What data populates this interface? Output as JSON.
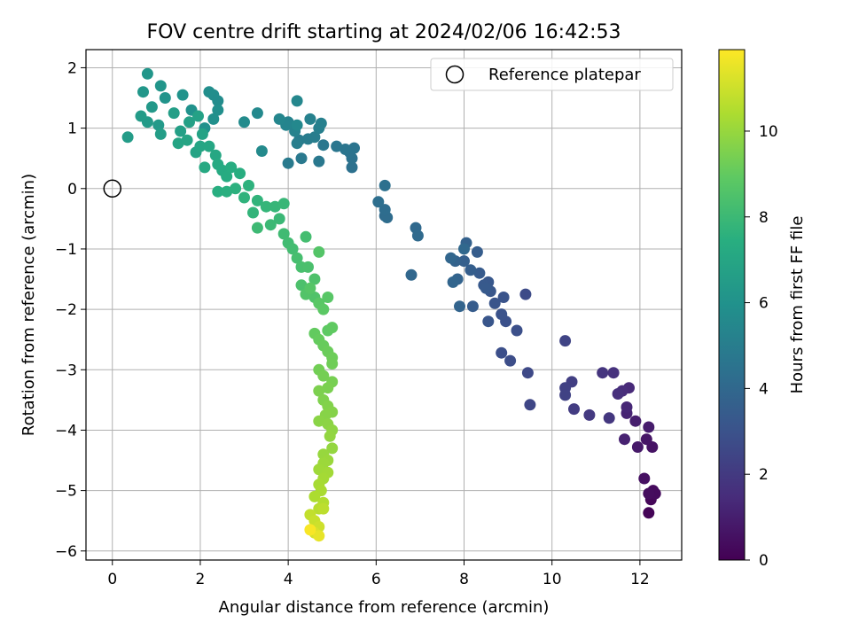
{
  "chart_data": {
    "type": "scatter",
    "title": "FOV centre drift starting at 2024/02/06 16:42:53",
    "xlabel": "Angular distance from reference (arcmin)",
    "ylabel": "Rotation from reference (arcmin)",
    "xlim": [
      -0.6,
      12.95
    ],
    "ylim": [
      -6.15,
      2.3
    ],
    "xticks": [
      0,
      2,
      4,
      6,
      8,
      10,
      12
    ],
    "yticks": [
      -6,
      -5,
      -4,
      -3,
      -2,
      -1,
      0,
      1,
      2
    ],
    "grid": true,
    "legend": {
      "placement": "top-right",
      "entries": [
        "Reference platepar"
      ]
    },
    "reference_point": {
      "x": 0,
      "y": 0,
      "marker": "hollow-circle",
      "name": "Reference platepar"
    },
    "colormap": "viridis",
    "colorbar": {
      "label": "Hours from first FF file",
      "min": 0,
      "max": 11.9,
      "ticks": [
        0,
        2,
        4,
        6,
        8,
        10
      ]
    },
    "series": [
      {
        "points": [
          [
            12.2,
            -5.37,
            0.1
          ],
          [
            12.25,
            -5.15,
            0.2
          ],
          [
            12.3,
            -5.0,
            0.3
          ],
          [
            12.35,
            -5.05,
            0.35
          ],
          [
            12.2,
            -5.05,
            0.4
          ],
          [
            12.1,
            -4.8,
            0.5
          ],
          [
            12.28,
            -4.28,
            0.6
          ],
          [
            12.15,
            -4.15,
            0.7
          ],
          [
            11.95,
            -4.28,
            0.8
          ],
          [
            12.2,
            -3.95,
            0.9
          ],
          [
            11.9,
            -3.85,
            1.0
          ],
          [
            11.65,
            -4.15,
            1.1
          ],
          [
            11.7,
            -3.72,
            1.2
          ],
          [
            11.7,
            -3.62,
            1.3
          ],
          [
            11.75,
            -3.3,
            1.4
          ],
          [
            11.6,
            -3.35,
            1.5
          ],
          [
            11.5,
            -3.4,
            1.6
          ],
          [
            11.4,
            -3.05,
            1.7
          ],
          [
            11.15,
            -3.05,
            1.8
          ],
          [
            11.3,
            -3.8,
            1.9
          ],
          [
            10.85,
            -3.75,
            2.0
          ],
          [
            10.5,
            -3.65,
            2.1
          ],
          [
            10.45,
            -3.2,
            2.2
          ],
          [
            10.3,
            -3.3,
            2.3
          ],
          [
            10.3,
            -3.42,
            2.35
          ],
          [
            10.3,
            -2.52,
            2.4
          ],
          [
            9.5,
            -3.58,
            2.5
          ],
          [
            9.45,
            -3.05,
            2.6
          ],
          [
            9.4,
            -1.75,
            2.7
          ],
          [
            9.05,
            -2.85,
            2.8
          ],
          [
            8.85,
            -2.72,
            2.85
          ],
          [
            9.2,
            -2.35,
            2.9
          ],
          [
            8.95,
            -2.2,
            2.95
          ],
          [
            8.85,
            -2.08,
            3.0
          ],
          [
            8.9,
            -1.8,
            3.05
          ],
          [
            8.7,
            -1.9,
            3.1
          ],
          [
            8.55,
            -2.2,
            3.15
          ],
          [
            8.6,
            -1.7,
            3.2
          ],
          [
            8.55,
            -1.55,
            3.25
          ],
          [
            8.45,
            -1.6,
            3.3
          ],
          [
            8.5,
            -1.65,
            3.35
          ],
          [
            8.35,
            -1.4,
            3.4
          ],
          [
            8.2,
            -1.95,
            3.45
          ],
          [
            8.3,
            -1.05,
            3.5
          ],
          [
            8.15,
            -1.35,
            3.55
          ],
          [
            8.0,
            -1.2,
            3.6
          ],
          [
            8.05,
            -0.9,
            3.65
          ],
          [
            7.8,
            -1.2,
            3.7
          ],
          [
            7.85,
            -1.5,
            3.75
          ],
          [
            7.9,
            -1.95,
            3.8
          ],
          [
            7.75,
            -1.55,
            3.85
          ],
          [
            7.7,
            -1.15,
            3.9
          ],
          [
            6.8,
            -1.43,
            3.95
          ],
          [
            8.0,
            -1.0,
            4.0
          ],
          [
            6.9,
            -0.65,
            4.05
          ],
          [
            6.95,
            -0.78,
            4.1
          ],
          [
            6.2,
            -0.45,
            4.15
          ],
          [
            6.25,
            -0.48,
            4.2
          ],
          [
            6.2,
            -0.35,
            4.25
          ],
          [
            6.05,
            -0.22,
            4.3
          ],
          [
            6.2,
            0.05,
            4.35
          ],
          [
            5.45,
            0.35,
            4.4
          ],
          [
            5.45,
            0.5,
            4.45
          ],
          [
            5.4,
            0.6,
            4.5
          ],
          [
            5.5,
            0.67,
            4.55
          ],
          [
            5.3,
            0.65,
            4.6
          ],
          [
            5.1,
            0.7,
            4.65
          ],
          [
            4.8,
            0.72,
            4.7
          ],
          [
            4.7,
            0.45,
            4.75
          ],
          [
            4.3,
            0.5,
            4.8
          ],
          [
            4.0,
            0.42,
            4.85
          ],
          [
            4.25,
            0.8,
            4.9
          ],
          [
            4.45,
            0.82,
            4.95
          ],
          [
            4.6,
            0.85,
            5.0
          ],
          [
            4.2,
            0.75,
            5.05
          ],
          [
            4.7,
            1.0,
            5.1
          ],
          [
            4.75,
            1.08,
            5.15
          ],
          [
            4.5,
            1.15,
            5.2
          ],
          [
            4.15,
            0.95,
            5.25
          ],
          [
            4.0,
            1.1,
            5.3
          ],
          [
            3.95,
            1.05,
            5.35
          ],
          [
            3.8,
            1.15,
            5.4
          ],
          [
            4.2,
            1.45,
            5.45
          ],
          [
            4.2,
            1.05,
            5.5
          ],
          [
            3.3,
            1.25,
            5.55
          ],
          [
            3.4,
            0.62,
            5.6
          ],
          [
            3.0,
            1.1,
            5.65
          ],
          [
            2.4,
            1.45,
            5.7
          ],
          [
            2.3,
            1.55,
            5.75
          ],
          [
            2.2,
            1.6,
            5.8
          ],
          [
            2.4,
            1.3,
            5.85
          ],
          [
            2.3,
            1.15,
            5.9
          ],
          [
            2.1,
            1.0,
            5.95
          ],
          [
            1.8,
            1.3,
            6.0
          ],
          [
            1.6,
            1.55,
            6.05
          ],
          [
            1.2,
            1.5,
            6.1
          ],
          [
            1.1,
            1.7,
            6.15
          ],
          [
            0.8,
            1.9,
            6.2
          ],
          [
            0.7,
            1.6,
            6.25
          ],
          [
            0.9,
            1.35,
            6.3
          ],
          [
            1.05,
            1.05,
            6.35
          ],
          [
            0.8,
            1.1,
            6.4
          ],
          [
            0.65,
            1.2,
            6.45
          ],
          [
            0.35,
            0.85,
            6.5
          ],
          [
            1.1,
            0.9,
            6.55
          ],
          [
            1.4,
            1.25,
            6.6
          ],
          [
            1.55,
            0.95,
            6.65
          ],
          [
            1.75,
            1.1,
            6.7
          ],
          [
            1.95,
            1.2,
            6.75
          ],
          [
            2.05,
            0.9,
            6.8
          ],
          [
            1.9,
            0.6,
            6.85
          ],
          [
            1.5,
            0.75,
            6.9
          ],
          [
            1.7,
            0.8,
            6.95
          ],
          [
            2.0,
            0.7,
            7.0
          ],
          [
            2.2,
            0.7,
            7.05
          ],
          [
            2.35,
            0.55,
            7.1
          ],
          [
            2.1,
            0.35,
            7.15
          ],
          [
            2.4,
            0.4,
            7.2
          ],
          [
            2.5,
            0.3,
            7.25
          ],
          [
            2.6,
            0.2,
            7.3
          ],
          [
            2.7,
            0.35,
            7.35
          ],
          [
            2.9,
            0.25,
            7.4
          ],
          [
            2.4,
            -0.05,
            7.45
          ],
          [
            2.6,
            -0.05,
            7.5
          ],
          [
            2.8,
            0.0,
            7.55
          ],
          [
            3.1,
            0.05,
            7.6
          ],
          [
            3.0,
            -0.15,
            7.65
          ],
          [
            3.3,
            -0.2,
            7.7
          ],
          [
            3.2,
            -0.4,
            7.75
          ],
          [
            3.5,
            -0.3,
            7.8
          ],
          [
            3.7,
            -0.3,
            7.85
          ],
          [
            3.9,
            -0.25,
            7.9
          ],
          [
            3.8,
            -0.5,
            7.95
          ],
          [
            3.6,
            -0.6,
            8.0
          ],
          [
            3.3,
            -0.65,
            8.05
          ],
          [
            3.9,
            -0.75,
            8.1
          ],
          [
            4.0,
            -0.9,
            8.15
          ],
          [
            4.1,
            -1.0,
            8.2
          ],
          [
            4.4,
            -0.8,
            8.25
          ],
          [
            4.2,
            -1.15,
            8.3
          ],
          [
            4.3,
            -1.3,
            8.35
          ],
          [
            4.45,
            -1.3,
            8.4
          ],
          [
            4.3,
            -1.6,
            8.45
          ],
          [
            4.6,
            -1.5,
            8.5
          ],
          [
            4.6,
            -1.8,
            8.55
          ],
          [
            4.4,
            -1.75,
            8.6
          ],
          [
            4.7,
            -1.05,
            8.65
          ],
          [
            4.5,
            -1.65,
            8.7
          ],
          [
            4.9,
            -1.8,
            8.75
          ],
          [
            4.7,
            -1.9,
            8.8
          ],
          [
            4.8,
            -2.0,
            8.85
          ],
          [
            4.9,
            -2.35,
            8.9
          ],
          [
            5.0,
            -2.3,
            8.95
          ],
          [
            4.6,
            -2.4,
            9.0
          ],
          [
            4.7,
            -2.5,
            9.05
          ],
          [
            4.8,
            -2.6,
            9.1
          ],
          [
            4.9,
            -2.7,
            9.15
          ],
          [
            5.0,
            -2.8,
            9.2
          ],
          [
            5.0,
            -2.9,
            9.25
          ],
          [
            4.7,
            -3.0,
            9.3
          ],
          [
            4.8,
            -3.1,
            9.35
          ],
          [
            5.0,
            -3.2,
            9.4
          ],
          [
            4.9,
            -3.3,
            9.45
          ],
          [
            4.7,
            -3.35,
            9.5
          ],
          [
            4.8,
            -3.5,
            9.55
          ],
          [
            4.9,
            -3.6,
            9.6
          ],
          [
            5.0,
            -3.7,
            9.65
          ],
          [
            4.85,
            -3.75,
            9.7
          ],
          [
            4.7,
            -3.85,
            9.75
          ],
          [
            4.9,
            -3.9,
            9.8
          ],
          [
            5.0,
            -4.0,
            9.85
          ],
          [
            4.95,
            -4.1,
            9.9
          ],
          [
            5.0,
            -4.3,
            9.95
          ],
          [
            4.8,
            -4.4,
            10.0
          ],
          [
            4.9,
            -4.5,
            10.05
          ],
          [
            4.8,
            -4.55,
            10.1
          ],
          [
            4.7,
            -4.65,
            10.15
          ],
          [
            4.9,
            -4.7,
            10.2
          ],
          [
            4.8,
            -4.8,
            10.25
          ],
          [
            4.7,
            -4.9,
            10.3
          ],
          [
            4.75,
            -5.0,
            10.35
          ],
          [
            4.6,
            -5.1,
            10.4
          ],
          [
            4.8,
            -5.2,
            10.5
          ],
          [
            4.7,
            -5.3,
            10.6
          ],
          [
            4.8,
            -5.3,
            10.7
          ],
          [
            4.5,
            -5.4,
            10.8
          ],
          [
            4.6,
            -5.5,
            10.9
          ],
          [
            4.7,
            -5.6,
            11.0
          ],
          [
            4.6,
            -5.7,
            11.2
          ],
          [
            4.7,
            -5.75,
            11.5
          ],
          [
            4.5,
            -5.65,
            11.8
          ]
        ]
      }
    ]
  }
}
